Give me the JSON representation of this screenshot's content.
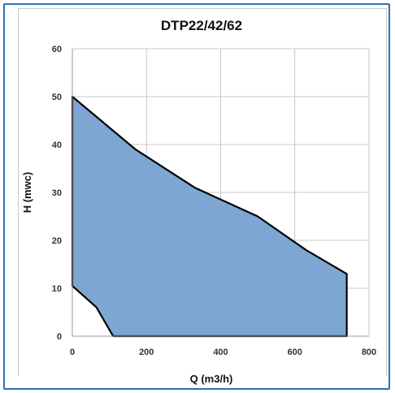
{
  "chart_data": {
    "type": "area",
    "title": "DTP22/42/62",
    "xlabel": "Q (m3/h)",
    "ylabel": "H (mwc)",
    "xlim": [
      0,
      800
    ],
    "ylim": [
      0,
      60
    ],
    "xticks": [
      0,
      200,
      400,
      600,
      800
    ],
    "yticks": [
      0,
      10,
      20,
      30,
      40,
      50,
      60
    ],
    "grid": true,
    "series": [
      {
        "points": [
          [
            0,
            50
          ],
          [
            170,
            39
          ],
          [
            330,
            31
          ],
          [
            500,
            25
          ],
          [
            630,
            18
          ],
          [
            740,
            13
          ],
          [
            740,
            0
          ],
          [
            110,
            0
          ],
          [
            65,
            6
          ],
          [
            0,
            10.5
          ]
        ]
      }
    ],
    "colors": {
      "fill": "#7ea6d3",
      "outline": "#000000",
      "grid": "#c8c8c8",
      "frame": "#2f6fb5"
    }
  }
}
